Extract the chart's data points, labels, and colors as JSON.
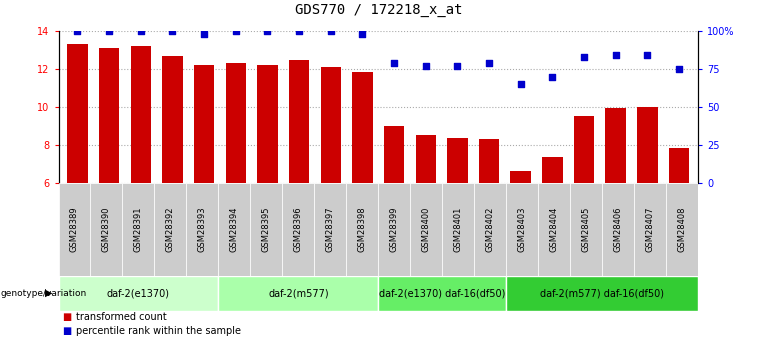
{
  "title": "GDS770 / 172218_x_at",
  "samples": [
    "GSM28389",
    "GSM28390",
    "GSM28391",
    "GSM28392",
    "GSM28393",
    "GSM28394",
    "GSM28395",
    "GSM28396",
    "GSM28397",
    "GSM28398",
    "GSM28399",
    "GSM28400",
    "GSM28401",
    "GSM28402",
    "GSM28403",
    "GSM28404",
    "GSM28405",
    "GSM28406",
    "GSM28407",
    "GSM28408"
  ],
  "bar_values": [
    13.3,
    13.1,
    13.2,
    12.7,
    12.2,
    12.3,
    12.2,
    12.5,
    12.1,
    11.85,
    9.0,
    8.5,
    8.35,
    8.3,
    6.65,
    7.35,
    9.5,
    9.95,
    10.0,
    7.85
  ],
  "percentile_values": [
    100,
    100,
    100,
    100,
    98,
    100,
    100,
    100,
    100,
    98,
    79,
    77,
    77,
    79,
    65,
    70,
    83,
    84,
    84,
    75
  ],
  "ylim_left": [
    6,
    14
  ],
  "ylim_right": [
    0,
    100
  ],
  "yticks_left": [
    6,
    8,
    10,
    12,
    14
  ],
  "yticks_right": [
    0,
    25,
    50,
    75,
    100
  ],
  "ytick_labels_right": [
    "0",
    "25",
    "50",
    "75",
    "100%"
  ],
  "bar_color": "#CC0000",
  "dot_color": "#0000CC",
  "grid_color": "#aaaaaa",
  "genotype_groups": [
    {
      "label": "daf-2(e1370)",
      "start": 0,
      "end": 5,
      "color": "#ccffcc"
    },
    {
      "label": "daf-2(m577)",
      "start": 5,
      "end": 10,
      "color": "#aaffaa"
    },
    {
      "label": "daf-2(e1370) daf-16(df50)",
      "start": 10,
      "end": 14,
      "color": "#66ee66"
    },
    {
      "label": "daf-2(m577) daf-16(df50)",
      "start": 14,
      "end": 20,
      "color": "#33cc33"
    }
  ],
  "genotype_label": "genotype/variation",
  "legend_bar_label": "transformed count",
  "legend_dot_label": "percentile rank within the sample",
  "title_fontsize": 10,
  "tick_fontsize": 7,
  "sample_fontsize": 6,
  "geno_fontsize": 7,
  "legend_fontsize": 7
}
